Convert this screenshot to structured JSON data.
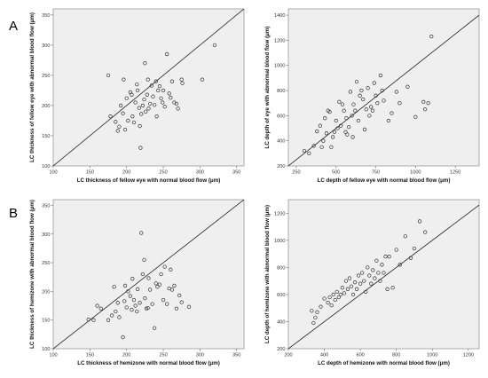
{
  "panel_labels": [
    "A",
    "B"
  ],
  "chart_data": [
    {
      "type": "scatter",
      "xlabel": "LC thickness of fellow eye with normal blood flow (μm)",
      "ylabel": "LC thickness of fellow eye with abnormal blood flow (μm)",
      "xlim": [
        100,
        360
      ],
      "ylim": [
        100,
        360
      ],
      "xticks": [
        100,
        150,
        200,
        250,
        300,
        350
      ],
      "yticks": [
        100,
        150,
        200,
        250,
        300,
        350
      ],
      "reference_line": [
        [
          100,
          100
        ],
        [
          360,
          360
        ]
      ],
      "grid": false,
      "points": [
        [
          175,
          250
        ],
        [
          178,
          182
        ],
        [
          185,
          173
        ],
        [
          188,
          158
        ],
        [
          190,
          165
        ],
        [
          192,
          200
        ],
        [
          195,
          187
        ],
        [
          196,
          243
        ],
        [
          198,
          160
        ],
        [
          200,
          212
        ],
        [
          202,
          175
        ],
        [
          205,
          222
        ],
        [
          207,
          218
        ],
        [
          208,
          182
        ],
        [
          210,
          172
        ],
        [
          212,
          205
        ],
        [
          214,
          235
        ],
        [
          215,
          225
        ],
        [
          217,
          196
        ],
        [
          218,
          166
        ],
        [
          219,
          130
        ],
        [
          220,
          186
        ],
        [
          222,
          200
        ],
        [
          224,
          210
        ],
        [
          225,
          270
        ],
        [
          226,
          190
        ],
        [
          228,
          218
        ],
        [
          229,
          243
        ],
        [
          230,
          195
        ],
        [
          232,
          203
        ],
        [
          234,
          233
        ],
        [
          236,
          215
        ],
        [
          238,
          201
        ],
        [
          240,
          240
        ],
        [
          241,
          182
        ],
        [
          243,
          225
        ],
        [
          245,
          232
        ],
        [
          247,
          212
        ],
        [
          249,
          205
        ],
        [
          250,
          225
        ],
        [
          252,
          198
        ],
        [
          255,
          285
        ],
        [
          258,
          220
        ],
        [
          260,
          213
        ],
        [
          262,
          240
        ],
        [
          265,
          205
        ],
        [
          268,
          203
        ],
        [
          270,
          195
        ],
        [
          275,
          243
        ],
        [
          276,
          237
        ],
        [
          303,
          243
        ],
        [
          320,
          300
        ]
      ]
    },
    {
      "type": "scatter",
      "xlabel": "LC depth of fellow eye with normal blood flow (μm)",
      "ylabel": "LC depth of eye with abnormal blood flow (μm)",
      "xlim": [
        200,
        1400
      ],
      "ylim": [
        200,
        1450
      ],
      "xticks": [
        250,
        500,
        750,
        1000,
        1250
      ],
      "yticks": [
        200,
        400,
        600,
        800,
        1000,
        1200,
        1400
      ],
      "reference_line": [
        [
          200,
          200
        ],
        [
          1400,
          1400
        ]
      ],
      "grid": false,
      "points": [
        [
          300,
          320
        ],
        [
          330,
          300
        ],
        [
          360,
          360
        ],
        [
          380,
          475
        ],
        [
          400,
          520
        ],
        [
          410,
          350
        ],
        [
          420,
          400
        ],
        [
          430,
          580
        ],
        [
          440,
          460
        ],
        [
          450,
          640
        ],
        [
          460,
          630
        ],
        [
          470,
          350
        ],
        [
          480,
          430
        ],
        [
          490,
          470
        ],
        [
          500,
          560
        ],
        [
          510,
          500
        ],
        [
          520,
          710
        ],
        [
          530,
          520
        ],
        [
          540,
          690
        ],
        [
          550,
          640
        ],
        [
          560,
          470
        ],
        [
          565,
          580
        ],
        [
          570,
          450
        ],
        [
          580,
          510
        ],
        [
          590,
          790
        ],
        [
          600,
          600
        ],
        [
          605,
          430
        ],
        [
          610,
          690
        ],
        [
          620,
          640
        ],
        [
          630,
          870
        ],
        [
          640,
          560
        ],
        [
          650,
          760
        ],
        [
          660,
          800
        ],
        [
          670,
          730
        ],
        [
          680,
          490
        ],
        [
          690,
          650
        ],
        [
          700,
          820
        ],
        [
          710,
          600
        ],
        [
          720,
          670
        ],
        [
          730,
          640
        ],
        [
          740,
          860
        ],
        [
          750,
          760
        ],
        [
          760,
          700
        ],
        [
          780,
          920
        ],
        [
          790,
          800
        ],
        [
          800,
          720
        ],
        [
          830,
          560
        ],
        [
          850,
          620
        ],
        [
          880,
          790
        ],
        [
          900,
          700
        ],
        [
          950,
          830
        ],
        [
          1000,
          590
        ],
        [
          1050,
          710
        ],
        [
          1060,
          650
        ],
        [
          1080,
          700
        ],
        [
          1100,
          1230
        ]
      ]
    },
    {
      "type": "scatter",
      "xlabel": "LC thickness of hemizone with normal blood flow (μm)",
      "ylabel": "LC thickness of hemizone with abnormal blood flow (μm)",
      "xlim": [
        100,
        360
      ],
      "ylim": [
        100,
        360
      ],
      "xticks": [
        100,
        150,
        200,
        250,
        300,
        350
      ],
      "yticks": [
        100,
        150,
        200,
        250,
        300,
        350
      ],
      "reference_line": [
        [
          100,
          100
        ],
        [
          360,
          360
        ]
      ],
      "grid": false,
      "points": [
        [
          148,
          151
        ],
        [
          155,
          150
        ],
        [
          160,
          175
        ],
        [
          165,
          170
        ],
        [
          175,
          150
        ],
        [
          180,
          158
        ],
        [
          183,
          208
        ],
        [
          185,
          165
        ],
        [
          188,
          180
        ],
        [
          190,
          155
        ],
        [
          195,
          120
        ],
        [
          197,
          183
        ],
        [
          198,
          210
        ],
        [
          200,
          172
        ],
        [
          202,
          200
        ],
        [
          205,
          192
        ],
        [
          207,
          168
        ],
        [
          208,
          222
        ],
        [
          210,
          185
        ],
        [
          212,
          175
        ],
        [
          214,
          165
        ],
        [
          215,
          204
        ],
        [
          218,
          180
        ],
        [
          220,
          302
        ],
        [
          222,
          230
        ],
        [
          224,
          255
        ],
        [
          225,
          188
        ],
        [
          227,
          170
        ],
        [
          229,
          171
        ],
        [
          230,
          223
        ],
        [
          232,
          203
        ],
        [
          235,
          178
        ],
        [
          238,
          136
        ],
        [
          240,
          214
        ],
        [
          242,
          208
        ],
        [
          245,
          212
        ],
        [
          247,
          230
        ],
        [
          250,
          185
        ],
        [
          252,
          243
        ],
        [
          255,
          178
        ],
        [
          258,
          205
        ],
        [
          260,
          238
        ],
        [
          262,
          203
        ],
        [
          265,
          210
        ],
        [
          268,
          170
        ],
        [
          272,
          193
        ],
        [
          275,
          181
        ],
        [
          285,
          173
        ]
      ]
    },
    {
      "type": "scatter",
      "xlabel": "LC depth of hemizone with normal blood flow (μm)",
      "ylabel": "LC depth of hemizone with abnormal blood flow (μm)",
      "xlim": [
        200,
        1260
      ],
      "ylim": [
        200,
        1300
      ],
      "xticks": [
        200,
        400,
        600,
        800,
        1000,
        1200
      ],
      "yticks": [
        200,
        400,
        600,
        800,
        1000,
        1200
      ],
      "reference_line": [
        [
          200,
          200
        ],
        [
          1260,
          1260
        ]
      ],
      "grid": false,
      "points": [
        [
          330,
          480
        ],
        [
          340,
          390
        ],
        [
          350,
          430
        ],
        [
          360,
          470
        ],
        [
          380,
          510
        ],
        [
          400,
          570
        ],
        [
          420,
          540
        ],
        [
          430,
          580
        ],
        [
          440,
          520
        ],
        [
          450,
          600
        ],
        [
          460,
          560
        ],
        [
          470,
          620
        ],
        [
          480,
          580
        ],
        [
          490,
          600
        ],
        [
          500,
          650
        ],
        [
          510,
          610
        ],
        [
          520,
          700
        ],
        [
          530,
          640
        ],
        [
          540,
          720
        ],
        [
          550,
          660
        ],
        [
          560,
          600
        ],
        [
          570,
          690
        ],
        [
          580,
          640
        ],
        [
          590,
          740
        ],
        [
          600,
          680
        ],
        [
          610,
          760
        ],
        [
          620,
          700
        ],
        [
          630,
          620
        ],
        [
          640,
          800
        ],
        [
          650,
          740
        ],
        [
          660,
          680
        ],
        [
          670,
          780
        ],
        [
          680,
          720
        ],
        [
          690,
          850
        ],
        [
          700,
          760
        ],
        [
          710,
          700
        ],
        [
          720,
          820
        ],
        [
          730,
          760
        ],
        [
          740,
          880
        ],
        [
          750,
          640
        ],
        [
          760,
          880
        ],
        [
          780,
          650
        ],
        [
          800,
          930
        ],
        [
          820,
          820
        ],
        [
          850,
          1030
        ],
        [
          880,
          870
        ],
        [
          900,
          940
        ],
        [
          930,
          1140
        ],
        [
          960,
          1060
        ]
      ]
    }
  ]
}
